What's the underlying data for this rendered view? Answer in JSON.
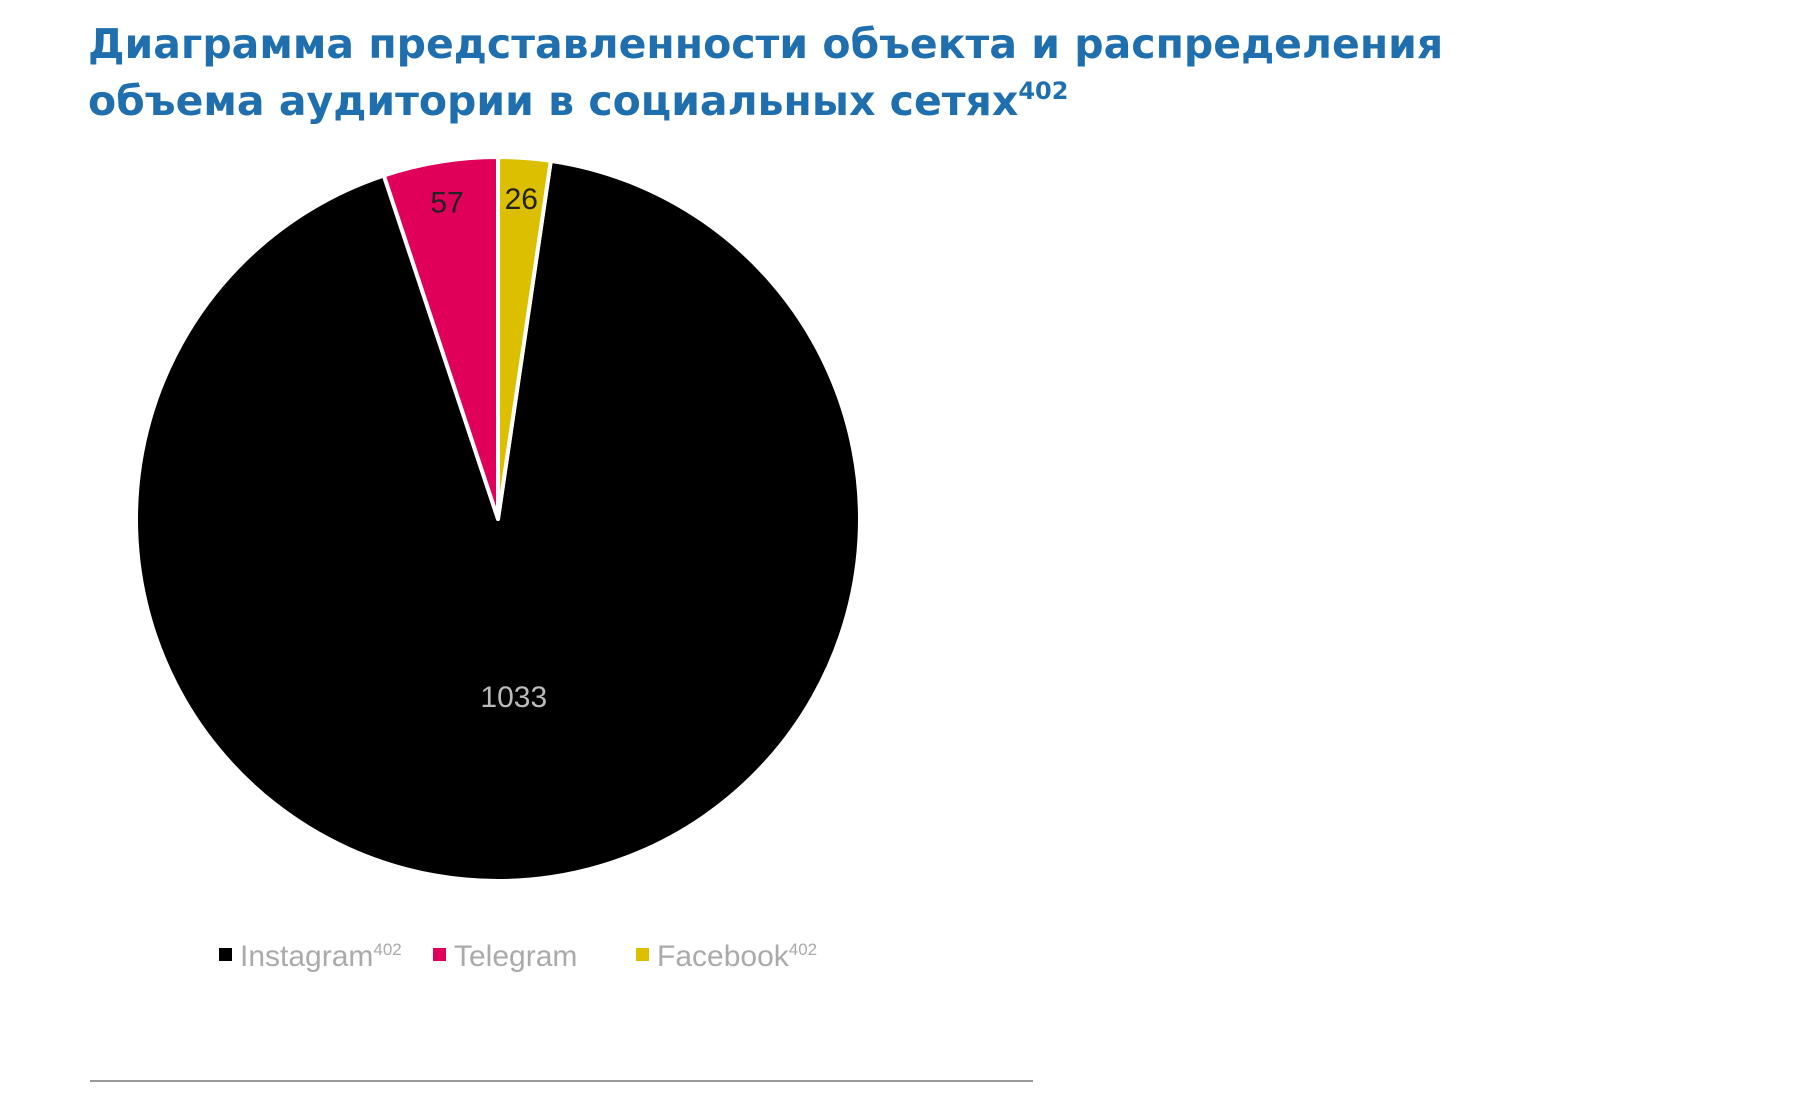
{
  "chart_data": {
    "type": "pie",
    "title": [
      "Диаграмма представленности объекта и распределения",
      "объема аудитории в социальных сетях"
    ],
    "title_note": "402",
    "categories": [
      "Instagram",
      "Telegram",
      "Facebook"
    ],
    "category_notes": [
      "402",
      null,
      "402"
    ],
    "values": [
      1033,
      57,
      26
    ],
    "colors": [
      "#000000",
      "#e0005a",
      "#dcc000"
    ],
    "label_colors": [
      "#bbbbbb",
      "#222222",
      "#222222"
    ]
  }
}
